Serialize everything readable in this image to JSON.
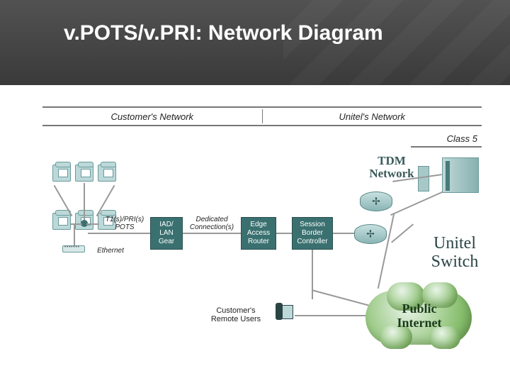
{
  "title": "v.POTS/v.PRI: Network Diagram",
  "sections": {
    "left": "Customer's Network",
    "right": "Unitel's Network",
    "class5": "Class 5"
  },
  "tdm_label": "TDM\nNetwork",
  "boxes": {
    "iad": "IAD/\nLAN\nGear",
    "ear": "Edge\nAccess\nRouter",
    "sbc": "Session\nBorder\nController"
  },
  "link_labels": {
    "t1": "T1(s)/PRI(s)\nPOTS",
    "eth": "Ethernet",
    "dedicated": "Dedicated\nConnection(s)"
  },
  "remote_users": "Customer's\nRemote Users",
  "unitel_switch": "Unitel\nSwitch",
  "public_internet": "Public\nInternet",
  "colors": {
    "teal": "#3a7070",
    "header": "#3a3a3a"
  }
}
